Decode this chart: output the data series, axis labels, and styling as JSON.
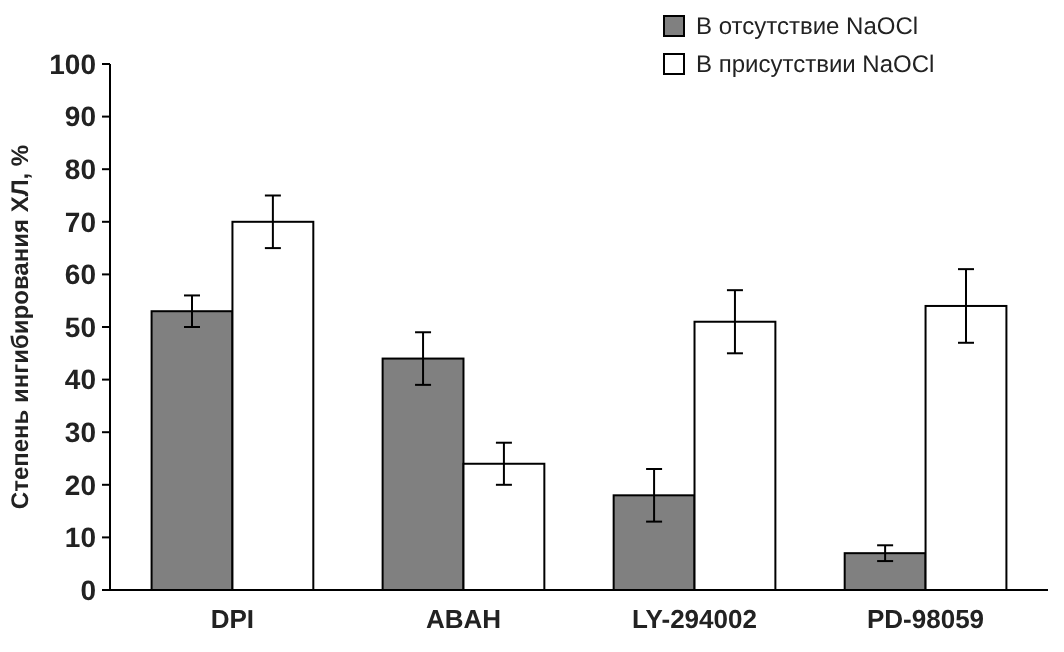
{
  "chart_data": {
    "type": "bar",
    "ylabel": "Степень ингибирования ХЛ, %",
    "categories": [
      "DPI",
      "ABAH",
      "LY-294002",
      "PD-98059"
    ],
    "series": [
      {
        "name": "В отсутствие NaOCl",
        "color": "#808080",
        "values": [
          53,
          44,
          18,
          7
        ],
        "errors": [
          3,
          5,
          5,
          1.5
        ]
      },
      {
        "name": "В присутствии NaOCl",
        "color": "#ffffff",
        "values": [
          70,
          24,
          51,
          54
        ],
        "errors": [
          5,
          4,
          6,
          7
        ]
      }
    ],
    "ylim": [
      0,
      100
    ],
    "yticks": [
      0,
      10,
      20,
      30,
      40,
      50,
      60,
      70,
      80,
      90,
      100
    ],
    "grid": false,
    "legend": "top right"
  }
}
